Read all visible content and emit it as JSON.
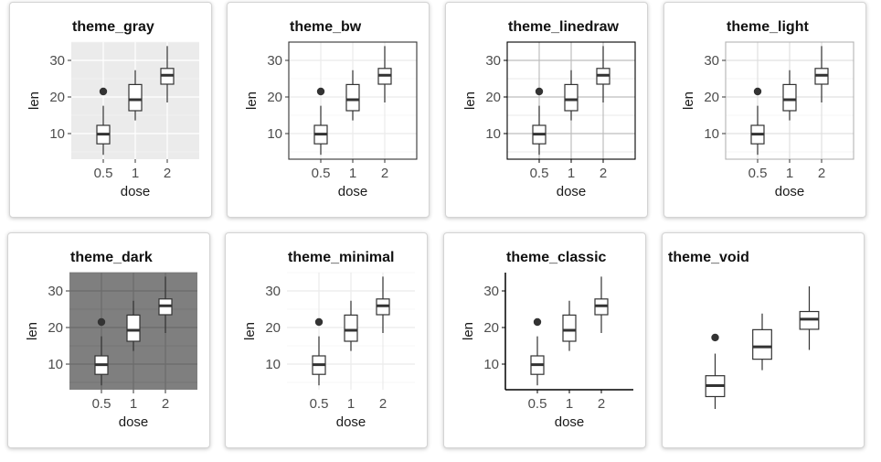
{
  "chart_data": {
    "type": "box",
    "categories": [
      "0.5",
      "1",
      "2"
    ],
    "xlabel": "dose",
    "ylabel": "len",
    "ylim": [
      3,
      35
    ],
    "yticks": [
      "10",
      "20",
      "30"
    ],
    "boxes": [
      {
        "category": "0.5",
        "min": 4.2,
        "q1": 7.2,
        "median": 9.85,
        "q3": 12.25,
        "max": 17.6,
        "outliers": [
          21.5
        ]
      },
      {
        "category": "1",
        "min": 13.6,
        "q1": 16.25,
        "median": 19.25,
        "q3": 23.4,
        "max": 27.3,
        "outliers": []
      },
      {
        "category": "2",
        "min": 18.5,
        "q1": 23.5,
        "median": 25.95,
        "q3": 27.8,
        "max": 33.9,
        "outliers": []
      }
    ],
    "panels": [
      {
        "title": "theme_gray",
        "bg": "#ebebeb",
        "grid_major": "#ffffff",
        "grid_minor": "#f5f5f5",
        "border": "none"
      },
      {
        "title": "theme_bw",
        "bg": "#ffffff",
        "grid_major": "#ebebeb",
        "grid_minor": "#f5f5f5",
        "border": "#333333"
      },
      {
        "title": "theme_linedraw",
        "bg": "#ffffff",
        "grid_major": "#bdbdbd",
        "grid_minor": "#e0e0e0",
        "border": "#000000"
      },
      {
        "title": "theme_light",
        "bg": "#ffffff",
        "grid_major": "#e0e0e0",
        "grid_minor": "#f0f0f0",
        "border": "#b3b3b3"
      },
      {
        "title": "theme_dark",
        "bg": "#7f7f7f",
        "grid_major": "#6b6b6b",
        "grid_minor": "#737373",
        "border": "none"
      },
      {
        "title": "theme_minimal",
        "bg": "#ffffff",
        "grid_major": "#ebebeb",
        "grid_minor": "#f5f5f5",
        "border": "none"
      },
      {
        "title": "theme_classic",
        "bg": "#ffffff",
        "grid_major": "none",
        "grid_minor": "none",
        "border": "axes"
      },
      {
        "title": "theme_void",
        "bg": "#ffffff",
        "grid_major": "none",
        "grid_minor": "none",
        "border": "none"
      }
    ]
  }
}
